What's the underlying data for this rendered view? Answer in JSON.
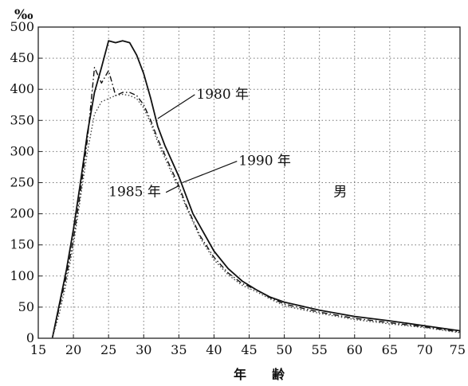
{
  "chart_data": {
    "type": "line",
    "unit_label": "‰",
    "xlabel": "年　　齢",
    "xlim": [
      15,
      75
    ],
    "ylim": [
      0,
      500
    ],
    "x_ticks": [
      "15",
      "20",
      "25",
      "30",
      "35",
      "40",
      "45",
      "50",
      "55",
      "60",
      "65",
      "70",
      "75"
    ],
    "y_ticks": [
      "0",
      "50",
      "100",
      "150",
      "200",
      "250",
      "300",
      "350",
      "400",
      "450",
      "500"
    ],
    "grid": true,
    "series": [
      {
        "name": "1980 年",
        "style": "solid",
        "color": "#111111",
        "x": [
          17,
          18,
          19,
          20,
          21,
          22,
          23,
          24,
          25,
          26,
          27,
          28,
          29,
          30,
          31,
          32,
          33,
          34,
          35,
          36,
          37,
          38,
          40,
          42,
          44,
          46,
          48,
          50,
          55,
          60,
          65,
          70,
          75
        ],
        "y": [
          0,
          55,
          110,
          175,
          250,
          330,
          395,
          435,
          478,
          475,
          478,
          475,
          455,
          425,
          385,
          340,
          310,
          285,
          260,
          230,
          200,
          180,
          140,
          112,
          92,
          78,
          66,
          58,
          45,
          35,
          28,
          20,
          12
        ]
      },
      {
        "name": "1985 年",
        "style": "dash-dot",
        "color": "#111111",
        "x": [
          17,
          18,
          19,
          20,
          21,
          22,
          23,
          24,
          25,
          26,
          27,
          28,
          29,
          30,
          31,
          32,
          33,
          34,
          35,
          36,
          38,
          40,
          42,
          44,
          46,
          48,
          50,
          55,
          60,
          65,
          70,
          75
        ],
        "y": [
          0,
          50,
          100,
          160,
          235,
          320,
          435,
          410,
          430,
          390,
          395,
          395,
          390,
          375,
          350,
          320,
          295,
          270,
          245,
          215,
          165,
          130,
          105,
          88,
          78,
          65,
          55,
          42,
          32,
          25,
          18,
          10
        ]
      },
      {
        "name": "1990 年",
        "style": "dotted",
        "color": "#444444",
        "x": [
          17,
          18,
          19,
          20,
          21,
          22,
          23,
          24,
          25,
          26,
          27,
          28,
          29,
          30,
          31,
          32,
          33,
          34,
          35,
          36,
          38,
          40,
          42,
          44,
          46,
          48,
          50,
          55,
          60,
          65,
          70,
          75
        ],
        "y": [
          0,
          40,
          90,
          150,
          225,
          300,
          360,
          380,
          385,
          390,
          392,
          390,
          385,
          370,
          345,
          315,
          290,
          265,
          240,
          212,
          162,
          126,
          102,
          85,
          75,
          63,
          52,
          40,
          30,
          23,
          17,
          9
        ]
      }
    ],
    "annotations": [
      {
        "text": "1980 年",
        "x": 37.5,
        "y": 385,
        "target_x": 32,
        "target_y": 353,
        "series": 0
      },
      {
        "text": "1990 年",
        "x": 43.5,
        "y": 278,
        "target_x": 35.5,
        "target_y": 250,
        "series": 2
      },
      {
        "text": "1985 年",
        "x": 25,
        "y": 228,
        "target_x": 35,
        "target_y": 245,
        "series": 1
      },
      {
        "text": "男",
        "x": 57,
        "y": 228
      }
    ]
  }
}
